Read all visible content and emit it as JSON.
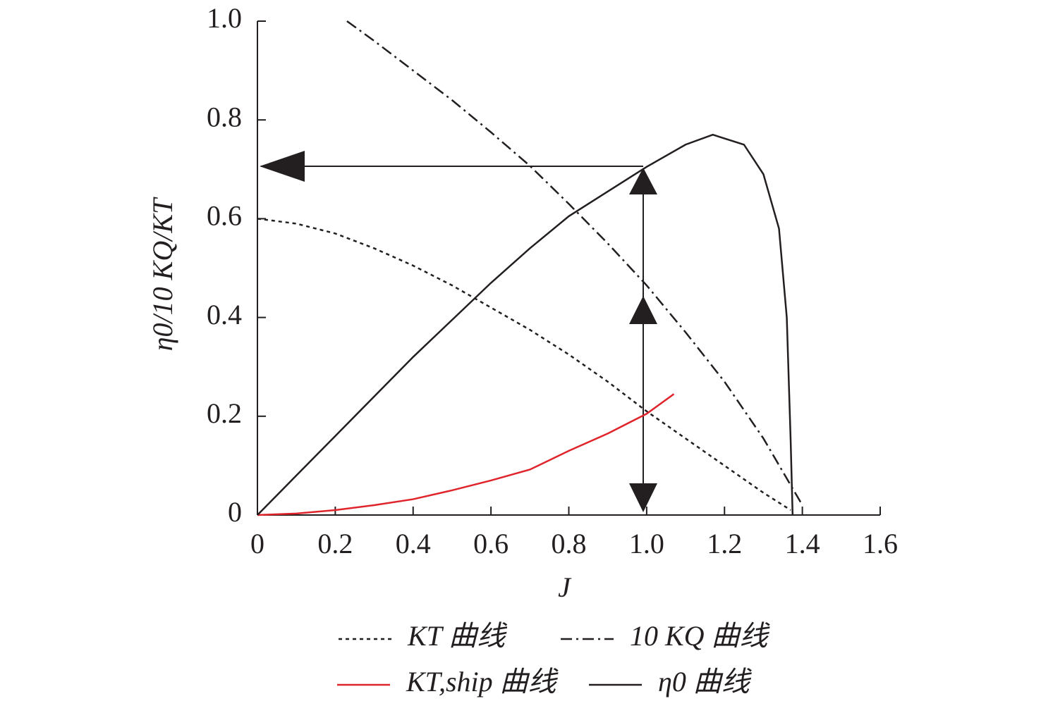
{
  "chart_data": {
    "type": "line",
    "xlabel": "J",
    "ylabel": "η0/10 KQ/KT",
    "xlim": [
      0,
      1.6
    ],
    "ylim": [
      0,
      1.0
    ],
    "xticks": [
      0,
      0.2,
      0.4,
      0.6,
      0.8,
      {
        "value": 1,
        "label": "1.0"
      },
      1.2,
      1.4,
      1.6
    ],
    "yticks": [
      0,
      0.2,
      0.4,
      0.6,
      0.8,
      {
        "value": 1,
        "label": "1.0"
      }
    ],
    "series": [
      {
        "name": "KT 曲线",
        "color": "#231f20",
        "dash": "dotted",
        "x": [
          0,
          0.1,
          0.2,
          0.3,
          0.4,
          0.5,
          0.6,
          0.7,
          0.8,
          0.9,
          1.0,
          1.1,
          1.2,
          1.3,
          1.37
        ],
        "values": [
          0.6,
          0.59,
          0.57,
          0.54,
          0.505,
          0.465,
          0.42,
          0.375,
          0.325,
          0.27,
          0.21,
          0.155,
          0.1,
          0.045,
          0.01
        ]
      },
      {
        "name": "10 KQ 曲线",
        "color": "#231f20",
        "dash": "dashdot",
        "x": [
          0.23,
          0.3,
          0.4,
          0.5,
          0.6,
          0.7,
          0.8,
          0.9,
          1.0,
          1.1,
          1.2,
          1.3,
          1.4
        ],
        "values": [
          1.0,
          0.96,
          0.9,
          0.84,
          0.775,
          0.707,
          0.63,
          0.55,
          0.465,
          0.37,
          0.27,
          0.155,
          0.02
        ]
      },
      {
        "name": "KT,ship 曲线",
        "color": "#e0242b",
        "dash": "solid",
        "x": [
          0,
          0.1,
          0.2,
          0.3,
          0.4,
          0.5,
          0.6,
          0.7,
          0.8,
          0.9,
          1.0,
          1.07
        ],
        "values": [
          0,
          0.003,
          0.01,
          0.02,
          0.032,
          0.05,
          0.07,
          0.092,
          0.13,
          0.165,
          0.205,
          0.245
        ]
      },
      {
        "name": "η0 曲线",
        "color": "#231f20",
        "dash": "solid",
        "x": [
          0,
          0.05,
          0.1,
          0.2,
          0.3,
          0.4,
          0.5,
          0.6,
          0.7,
          0.8,
          0.9,
          1.0,
          1.1,
          1.17,
          1.25,
          1.3,
          1.34,
          1.36,
          1.37,
          1.375
        ],
        "values": [
          0,
          0.04,
          0.08,
          0.16,
          0.24,
          0.32,
          0.395,
          0.47,
          0.54,
          0.605,
          0.655,
          0.705,
          0.75,
          0.77,
          0.75,
          0.69,
          0.58,
          0.4,
          0.15,
          0
        ]
      }
    ]
  }
}
